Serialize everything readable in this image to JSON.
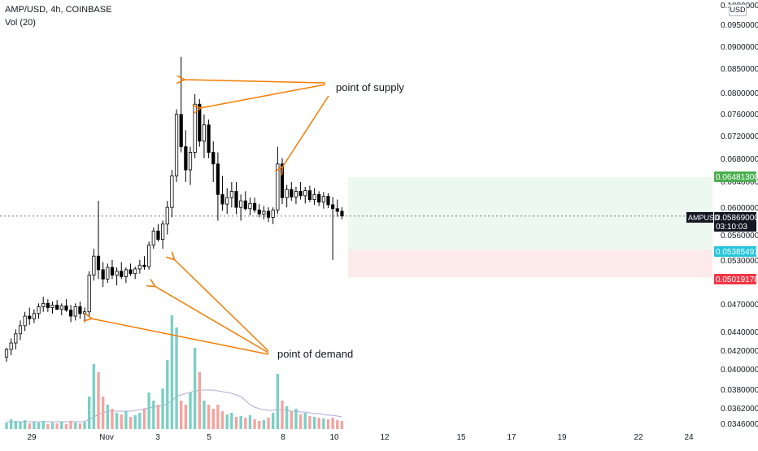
{
  "header": {
    "title": "AMP/USD, 4h, COINBASE",
    "volume_label": "Vol (20)"
  },
  "currency_button": "USD",
  "colors": {
    "up": "#ffffff",
    "down": "#000000",
    "vol_up": "#7ccfc6",
    "vol_down": "#f2a4a0",
    "vol_ma": "#b3a9d6",
    "annotation": "#f57c00",
    "target": "#4caf50",
    "entry": "#26c6da",
    "stop": "#f23645",
    "price_tag": "#131722"
  },
  "annotations": {
    "supply": "point of supply",
    "demand": "point of demand"
  },
  "price_tags": {
    "target": "0.06481300",
    "entry": "0.05385491",
    "stop": "0.05019178",
    "symbol": "AMPUSD",
    "last": "0.05869000",
    "countdown": "03:10:03"
  },
  "chart_data": {
    "type": "candlestick",
    "symbol": "AMP/USD",
    "interval": "4h",
    "exchange": "COINBASE",
    "x_ticks": [
      "29",
      "Nov",
      "3",
      "5",
      "8",
      "10",
      "12",
      "15",
      "17",
      "19",
      "22",
      "24"
    ],
    "y_ticks": [
      "0.03460000",
      "0.03620000",
      "0.03800000",
      "0.04000000",
      "0.04200000",
      "0.04400000",
      "0.04700000",
      "0.05300000",
      "0.05600000",
      "0.06000000",
      "0.06400000",
      "0.06800000",
      "0.07200000",
      "0.07600000",
      "0.08000000",
      "0.08500000",
      "0.09000000",
      "0.09500000",
      "0.10000000"
    ],
    "y_scale": "log",
    "ylim": [
      0.034,
      0.1
    ],
    "last_price": 0.05869,
    "position": {
      "target": 0.064813,
      "entry": 0.05385491,
      "stop": 0.05019178
    },
    "candles": [
      [
        0.041,
        0.042,
        0.0405,
        0.0418
      ],
      [
        0.0418,
        0.043,
        0.0412,
        0.0425
      ],
      [
        0.0425,
        0.044,
        0.0418,
        0.0435
      ],
      [
        0.0435,
        0.045,
        0.0428,
        0.0444
      ],
      [
        0.0444,
        0.046,
        0.0438,
        0.0455
      ],
      [
        0.0455,
        0.0465,
        0.0445,
        0.0452
      ],
      [
        0.0452,
        0.0463,
        0.0447,
        0.0458
      ],
      [
        0.0458,
        0.047,
        0.0452,
        0.0466
      ],
      [
        0.0466,
        0.0478,
        0.046,
        0.047
      ],
      [
        0.047,
        0.0475,
        0.046,
        0.0465
      ],
      [
        0.0465,
        0.0472,
        0.0458,
        0.0468
      ],
      [
        0.0468,
        0.0474,
        0.0462,
        0.0463
      ],
      [
        0.0463,
        0.047,
        0.0456,
        0.0467
      ],
      [
        0.0467,
        0.0475,
        0.046,
        0.0462
      ],
      [
        0.0462,
        0.0468,
        0.0448,
        0.0455
      ],
      [
        0.0455,
        0.047,
        0.045,
        0.0466
      ],
      [
        0.0466,
        0.0472,
        0.0452,
        0.0458
      ],
      [
        0.0458,
        0.0465,
        0.0448,
        0.046
      ],
      [
        0.046,
        0.051,
        0.0455,
        0.0505
      ],
      [
        0.0505,
        0.054,
        0.0498,
        0.053
      ],
      [
        0.053,
        0.061,
        0.05,
        0.0512
      ],
      [
        0.0512,
        0.0522,
        0.049,
        0.05
      ],
      [
        0.05,
        0.052,
        0.0495,
        0.0515
      ],
      [
        0.0515,
        0.0525,
        0.05,
        0.0505
      ],
      [
        0.0505,
        0.0515,
        0.0492,
        0.051
      ],
      [
        0.051,
        0.0522,
        0.05,
        0.0503
      ],
      [
        0.0503,
        0.0515,
        0.0495,
        0.0512
      ],
      [
        0.0512,
        0.052,
        0.0504,
        0.0507
      ],
      [
        0.0507,
        0.0516,
        0.05,
        0.0513
      ],
      [
        0.0513,
        0.0525,
        0.0507,
        0.0518
      ],
      [
        0.0518,
        0.053,
        0.0512,
        0.0516
      ],
      [
        0.0516,
        0.055,
        0.0512,
        0.0545
      ],
      [
        0.0545,
        0.057,
        0.054,
        0.0565
      ],
      [
        0.0565,
        0.0575,
        0.055,
        0.0553
      ],
      [
        0.0553,
        0.058,
        0.054,
        0.0575
      ],
      [
        0.0575,
        0.061,
        0.056,
        0.06
      ],
      [
        0.06,
        0.066,
        0.0585,
        0.065
      ],
      [
        0.065,
        0.077,
        0.064,
        0.076
      ],
      [
        0.076,
        0.088,
        0.069,
        0.07
      ],
      [
        0.07,
        0.073,
        0.064,
        0.066
      ],
      [
        0.066,
        0.07,
        0.0635,
        0.069
      ],
      [
        0.069,
        0.08,
        0.068,
        0.078
      ],
      [
        0.078,
        0.079,
        0.07,
        0.071
      ],
      [
        0.071,
        0.076,
        0.068,
        0.074
      ],
      [
        0.074,
        0.075,
        0.068,
        0.069
      ],
      [
        0.069,
        0.071,
        0.064,
        0.067
      ],
      [
        0.067,
        0.069,
        0.058,
        0.062
      ],
      [
        0.062,
        0.065,
        0.0595,
        0.0605
      ],
      [
        0.0605,
        0.063,
        0.059,
        0.0615
      ],
      [
        0.0615,
        0.064,
        0.06,
        0.0625
      ],
      [
        0.0625,
        0.064,
        0.059,
        0.06
      ],
      [
        0.06,
        0.062,
        0.058,
        0.061
      ],
      [
        0.061,
        0.0625,
        0.0595,
        0.0598
      ],
      [
        0.0598,
        0.0615,
        0.0588,
        0.0606
      ],
      [
        0.0606,
        0.0615,
        0.0592,
        0.0596
      ],
      [
        0.0596,
        0.0605,
        0.0585,
        0.059
      ],
      [
        0.059,
        0.0602,
        0.0582,
        0.0594
      ],
      [
        0.0594,
        0.06,
        0.0578,
        0.0585
      ],
      [
        0.0585,
        0.06,
        0.0575,
        0.0596
      ],
      [
        0.0596,
        0.07,
        0.059,
        0.067
      ],
      [
        0.067,
        0.068,
        0.0605,
        0.0615
      ],
      [
        0.0615,
        0.0635,
        0.06,
        0.0628
      ],
      [
        0.0628,
        0.064,
        0.061,
        0.0616
      ],
      [
        0.0616,
        0.0632,
        0.0605,
        0.0625
      ],
      [
        0.0625,
        0.064,
        0.0612,
        0.0618
      ],
      [
        0.0618,
        0.0632,
        0.0606,
        0.0626
      ],
      [
        0.0626,
        0.0634,
        0.0608,
        0.0612
      ],
      [
        0.0612,
        0.063,
        0.0604,
        0.062
      ],
      [
        0.062,
        0.0625,
        0.0602,
        0.0608
      ],
      [
        0.0608,
        0.0624,
        0.0598,
        0.0617
      ],
      [
        0.0617,
        0.0622,
        0.0599,
        0.0604
      ],
      [
        0.0604,
        0.0616,
        0.0525,
        0.0598
      ],
      [
        0.0598,
        0.0612,
        0.0586,
        0.0594
      ],
      [
        0.0594,
        0.06,
        0.0582,
        0.0587
      ]
    ],
    "volumes": [
      8,
      12,
      10,
      9,
      11,
      7,
      9,
      8,
      10,
      6,
      8,
      7,
      9,
      6,
      10,
      8,
      7,
      9,
      40,
      80,
      70,
      40,
      30,
      25,
      20,
      18,
      22,
      15,
      17,
      20,
      25,
      45,
      35,
      30,
      50,
      85,
      140,
      125,
      35,
      30,
      45,
      100,
      70,
      35,
      30,
      25,
      30,
      22,
      18,
      20,
      15,
      16,
      14,
      17,
      12,
      10,
      11,
      14,
      20,
      68,
      35,
      28,
      22,
      25,
      18,
      20,
      16,
      15,
      14,
      13,
      12,
      14,
      11,
      10
    ],
    "volume_ma": [
      9,
      9,
      9,
      9,
      9,
      9,
      9,
      9,
      9,
      9,
      9,
      9,
      9,
      9,
      9,
      9,
      9,
      9,
      12,
      15,
      18,
      20,
      22,
      22,
      22,
      22,
      22,
      22,
      23,
      24,
      25,
      26,
      27,
      28,
      29,
      31,
      35,
      40,
      42,
      44,
      45,
      47,
      48,
      48,
      48,
      48,
      47,
      46,
      45,
      44,
      42,
      40,
      35,
      30,
      27,
      25,
      24,
      23,
      23,
      24,
      24,
      23,
      22,
      22,
      21,
      21,
      20,
      19,
      19,
      18,
      17,
      17,
      16,
      15
    ]
  }
}
